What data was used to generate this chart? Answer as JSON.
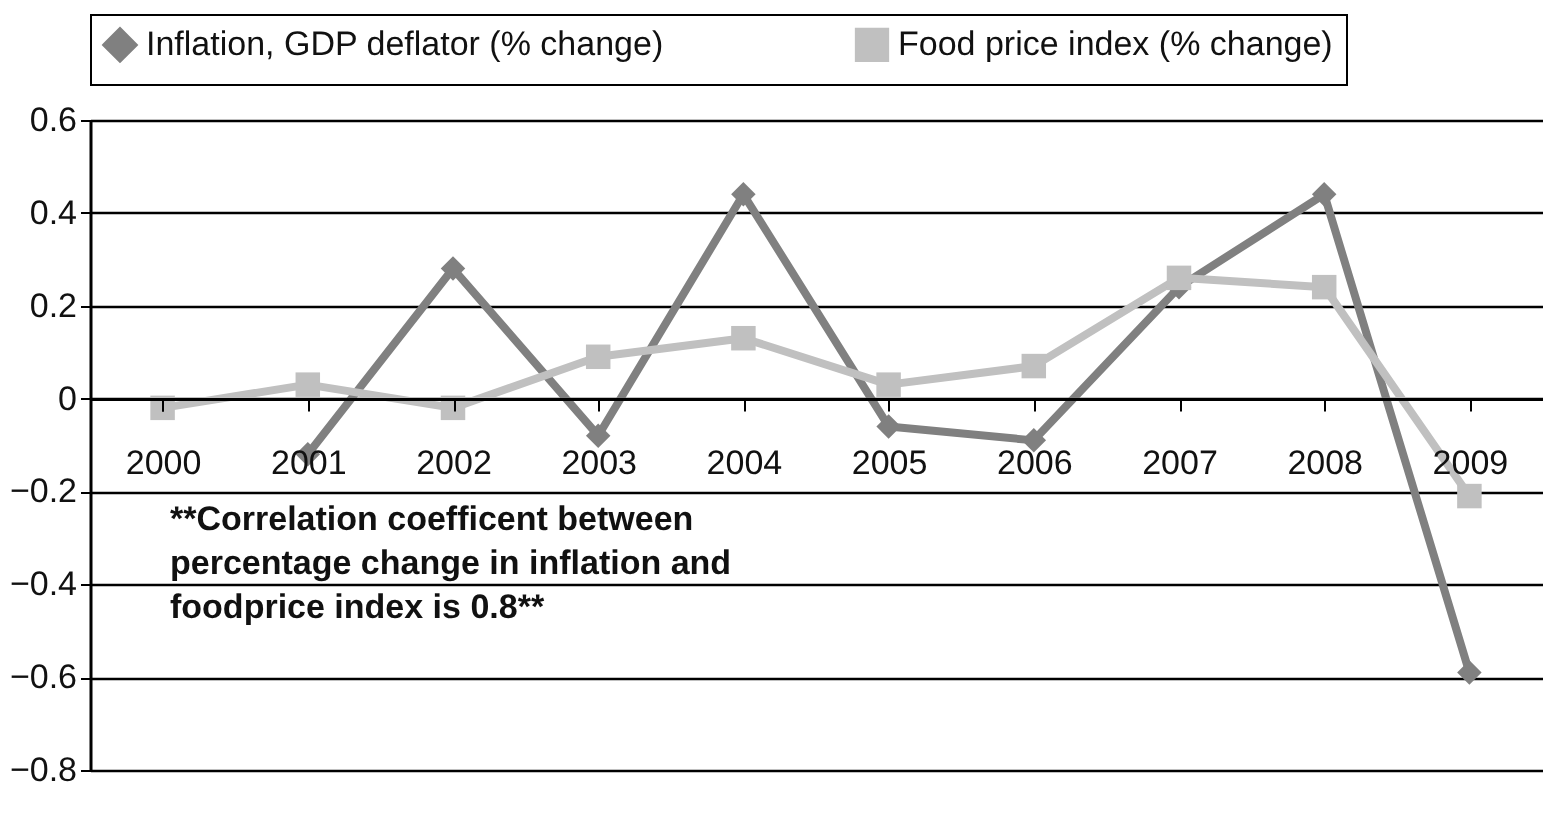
{
  "chart_data": {
    "type": "line",
    "categories": [
      "2000",
      "2001",
      "2002",
      "2003",
      "2004",
      "2005",
      "2006",
      "2007",
      "2008",
      "2009"
    ],
    "series": [
      {
        "name": "Inflation, GDP deflator (% change)",
        "color": "#808080",
        "marker": "diamond",
        "values": [
          null,
          -0.12,
          0.28,
          -0.08,
          0.44,
          -0.06,
          -0.09,
          0.24,
          0.44,
          -0.59
        ]
      },
      {
        "name": "Food price index (% change)",
        "color": "#c0c0c0",
        "marker": "square",
        "values": [
          -0.02,
          0.03,
          -0.02,
          0.09,
          0.13,
          0.03,
          0.07,
          0.26,
          0.24,
          -0.21
        ]
      }
    ],
    "ylim": [
      -0.8,
      0.6
    ],
    "yticks": [
      -0.8,
      -0.6,
      -0.4,
      -0.2,
      0,
      0.2,
      0.4,
      0.6
    ],
    "grid": "y",
    "legend": "top",
    "annotations": [
      "**Correlation coefficent between\npercentage change in inflation and\nfoodprice index is 0.8**"
    ]
  }
}
